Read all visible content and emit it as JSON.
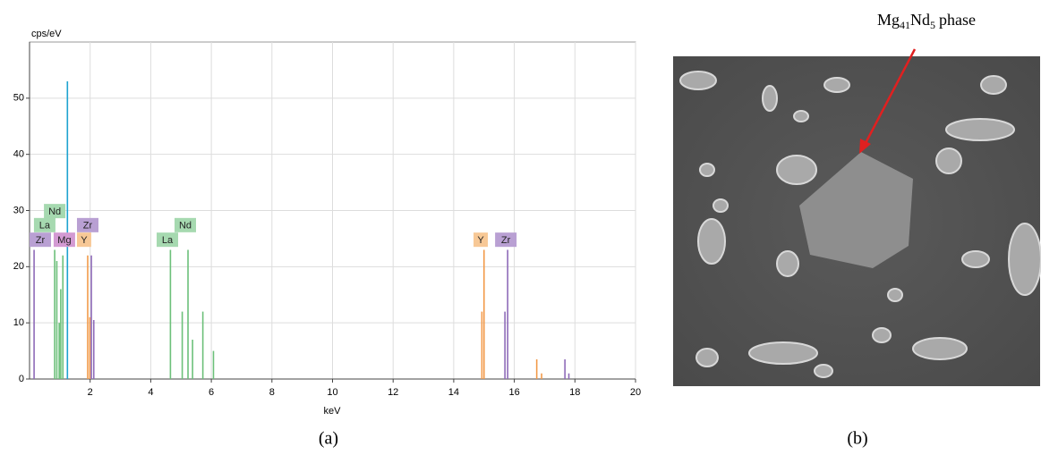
{
  "chart_data": {
    "type": "spectrum",
    "y_label": "cps/eV",
    "x_label": "keV",
    "xlim": [
      0,
      20
    ],
    "ylim": [
      0,
      60
    ],
    "xticks": [
      2,
      4,
      6,
      8,
      10,
      12,
      14,
      16,
      18,
      20
    ],
    "yticks": [
      0,
      10,
      20,
      30,
      40,
      50
    ],
    "grid": true,
    "series": [
      {
        "name": "Mg",
        "color": "#1ea3d0",
        "label_color": "#d39ad3",
        "x": [
          1.25
        ],
        "values": [
          53
        ],
        "labels": [
          [
            1.15,
            24.8
          ]
        ]
      },
      {
        "name": "La",
        "color": "#6cc07a",
        "label_color": "#a6d9b0",
        "x": [
          0.83,
          0.9,
          4.65,
          5.04,
          5.38
        ],
        "values": [
          23,
          21,
          23,
          12,
          7
        ],
        "labels": [
          [
            0.5,
            27.4
          ],
          [
            4.55,
            24.8
          ]
        ]
      },
      {
        "name": "Nd",
        "color": "#6cc07a",
        "label_color": "#a6d9b0",
        "x": [
          0.98,
          1.03,
          1.1,
          5.23,
          5.72,
          6.07
        ],
        "values": [
          10,
          16,
          22,
          23,
          12,
          5
        ],
        "labels": [
          [
            0.83,
            29.9
          ],
          [
            5.14,
            27.4
          ]
        ]
      },
      {
        "name": "Y",
        "color": "#f29a4a",
        "label_color": "#f7c896",
        "x": [
          1.92,
          1.99,
          14.93,
          15.0,
          16.74,
          16.9
        ],
        "values": [
          22,
          11,
          12,
          23,
          3.5,
          1
        ],
        "labels": [
          [
            1.8,
            24.8
          ],
          [
            14.89,
            24.8
          ]
        ]
      },
      {
        "name": "Zr",
        "color": "#8e6bb8",
        "label_color": "#b9a0d3",
        "x": [
          0.15,
          2.04,
          2.12,
          15.69,
          15.78,
          17.67,
          17.8
        ],
        "values": [
          23,
          22,
          10.5,
          12,
          23,
          3.5,
          1
        ],
        "labels": [
          [
            0.1,
            24.8
          ],
          [
            1.92,
            27.4
          ],
          [
            15.72,
            24.8
          ]
        ]
      }
    ]
  },
  "figure": {
    "caption_a": "(a)",
    "caption_b": "(b)",
    "phase_label": [
      "Mg",
      "41",
      "Nd",
      "5",
      "phase"
    ]
  }
}
